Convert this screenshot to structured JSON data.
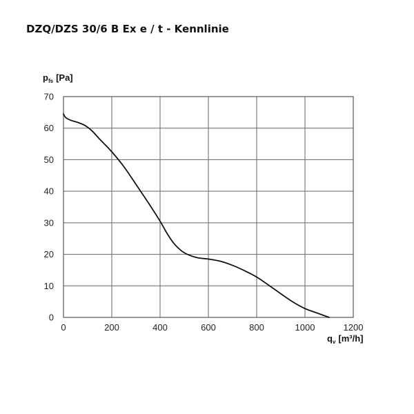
{
  "chart_data": {
    "type": "line",
    "title": "DZQ/DZS 30/6 B Ex e / t - Kennlinie",
    "ylabel": {
      "main": "p",
      "sub": "fs",
      "unit": "[Pa]"
    },
    "xlabel": {
      "main": "q",
      "sub": "v",
      "unit": "[m³/h]"
    },
    "xlim": [
      0,
      1200
    ],
    "ylim": [
      0,
      70
    ],
    "xticks": [
      0,
      200,
      400,
      600,
      800,
      1000,
      1200
    ],
    "yticks": [
      0,
      10,
      20,
      30,
      40,
      50,
      60,
      70
    ],
    "xtick_labels": [
      "0",
      "200",
      "400",
      "600",
      "800",
      "1000",
      "1200"
    ],
    "ytick_labels": [
      "0",
      "10",
      "20",
      "30",
      "40",
      "50",
      "60",
      "70"
    ],
    "grid": true,
    "series": [
      {
        "x": [
          0,
          10,
          30,
          60,
          90,
          120,
          150,
          200,
          250,
          300,
          350,
          400,
          430,
          460,
          500,
          550,
          600,
          650,
          700,
          750,
          800,
          850,
          900,
          950,
          1000,
          1050,
          1100
        ],
        "y": [
          64.5,
          63.3,
          62.5,
          61.8,
          60.8,
          59.0,
          56.5,
          52.5,
          47.8,
          42.2,
          36.5,
          30.5,
          26.5,
          23.2,
          20.5,
          19.0,
          18.5,
          17.8,
          16.5,
          14.8,
          12.8,
          10.2,
          7.5,
          4.9,
          2.8,
          1.4,
          0.0
        ]
      }
    ]
  }
}
